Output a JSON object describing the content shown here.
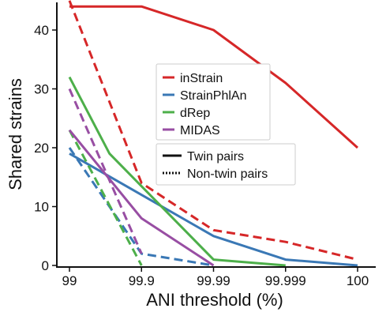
{
  "chart_data": {
    "type": "line",
    "xlabel": "ANI threshold (%)",
    "ylabel": "Shared strains",
    "categories": [
      "99",
      "99.9",
      "99.99",
      "99.999",
      "100"
    ],
    "ylim": [
      0,
      45
    ],
    "yticks": [
      0,
      10,
      20,
      30,
      40
    ],
    "grid": false,
    "series": [
      {
        "name": "inStrain",
        "pair_type": "Twin pairs",
        "color": "#d62728",
        "x": [
          99,
          99.5,
          99.9,
          99.99,
          99.999,
          100
        ],
        "values": [
          44,
          44,
          44,
          40,
          31,
          20
        ]
      },
      {
        "name": "inStrain",
        "pair_type": "Non-twin pairs",
        "color": "#d62728",
        "x": [
          99,
          99.9,
          99.99,
          99.999,
          100
        ],
        "values": [
          45,
          14,
          6,
          4,
          1
        ]
      },
      {
        "name": "StrainPhlAn",
        "pair_type": "Twin pairs",
        "color": "#3a78b5",
        "x": [
          99,
          99.99,
          99.999,
          100
        ],
        "values": [
          19,
          5,
          1,
          0
        ]
      },
      {
        "name": "StrainPhlAn",
        "pair_type": "Non-twin pairs",
        "color": "#3a78b5",
        "x": [
          99,
          99.9,
          99.99
        ],
        "values": [
          20,
          2,
          0
        ]
      },
      {
        "name": "dRep",
        "pair_type": "Twin pairs",
        "color": "#4daf4a",
        "x": [
          99,
          99.5,
          99.99,
          99.999
        ],
        "values": [
          32,
          19,
          1,
          0
        ]
      },
      {
        "name": "dRep",
        "pair_type": "Non-twin pairs",
        "color": "#4daf4a",
        "x": [
          99,
          99.9
        ],
        "values": [
          23,
          0
        ]
      },
      {
        "name": "MIDAS",
        "pair_type": "Twin pairs",
        "color": "#984ea3",
        "x": [
          99,
          99.9,
          99.99
        ],
        "values": [
          23,
          8,
          0
        ]
      },
      {
        "name": "MIDAS",
        "pair_type": "Non-twin pairs",
        "color": "#984ea3",
        "x": [
          99,
          99.9
        ],
        "values": [
          30,
          2
        ]
      }
    ],
    "legend": {
      "placement": "center",
      "methods": [
        {
          "name": "inStrain",
          "color": "#d62728"
        },
        {
          "name": "StrainPhlAn",
          "color": "#3a78b5"
        },
        {
          "name": "dRep",
          "color": "#4daf4a"
        },
        {
          "name": "MIDAS",
          "color": "#984ea3"
        }
      ],
      "line_styles": [
        {
          "label": "Twin pairs",
          "style": "solid"
        },
        {
          "label": "Non-twin pairs",
          "style": "dotted"
        }
      ]
    }
  }
}
